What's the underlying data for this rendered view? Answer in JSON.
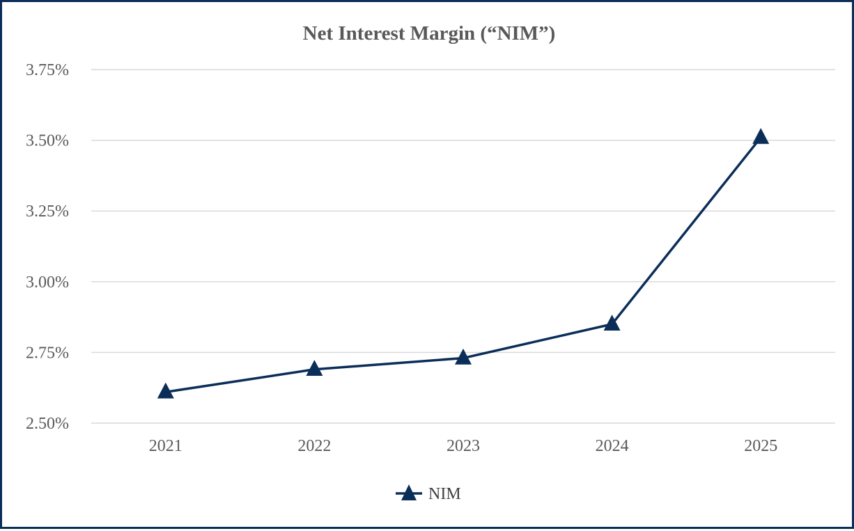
{
  "chart_data": {
    "type": "line",
    "title": "Net Interest Margin (“NIM”)",
    "xlabel": "",
    "ylabel": "",
    "categories": [
      "2021",
      "2022",
      "2023",
      "2024",
      "2025"
    ],
    "series": [
      {
        "name": "NIM",
        "values": [
          2.61,
          2.69,
          2.73,
          2.85,
          3.51
        ],
        "color": "#0b2e59",
        "marker": "triangle"
      }
    ],
    "ylim": [
      2.5,
      3.75
    ],
    "yticks": [
      2.5,
      2.75,
      3.0,
      3.25,
      3.5,
      3.75
    ],
    "ytick_labels": [
      "2.50%",
      "2.75%",
      "3.00%",
      "3.25%",
      "3.50%",
      "3.75%"
    ],
    "grid": true,
    "legend": "bottom-center"
  }
}
